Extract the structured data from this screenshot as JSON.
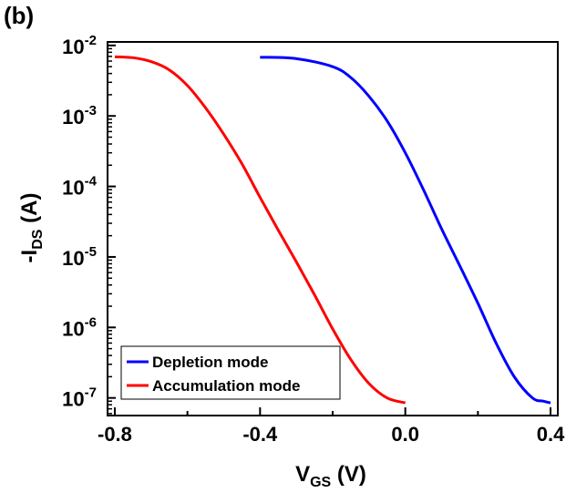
{
  "panel_label": "(b)",
  "chart_data": {
    "type": "line",
    "title": "",
    "xlabel": {
      "main": "V",
      "sub": "GS",
      "unit": " (V)"
    },
    "ylabel": {
      "prefix": "-I",
      "sub": "DS",
      "unit": " (A)"
    },
    "xlim": [
      -0.82,
      0.42
    ],
    "ylim_log10": [
      -7.25,
      -1.95
    ],
    "yscale": "log",
    "grid": false,
    "legend_position": "bottom-left",
    "xticks": [
      {
        "value": -0.8,
        "label": "-0.8"
      },
      {
        "value": -0.4,
        "label": "-0.4"
      },
      {
        "value": 0.0,
        "label": "0.0"
      },
      {
        "value": 0.4,
        "label": "0.4"
      }
    ],
    "yticks": [
      {
        "exp": -2,
        "base": "10",
        "sup": "-2"
      },
      {
        "exp": -3,
        "base": "10",
        "sup": "-3"
      },
      {
        "exp": -4,
        "base": "10",
        "sup": "-4"
      },
      {
        "exp": -5,
        "base": "10",
        "sup": "-5"
      },
      {
        "exp": -6,
        "base": "10",
        "sup": "-6"
      },
      {
        "exp": -7,
        "base": "10",
        "sup": "-7"
      }
    ],
    "series": [
      {
        "name": "Depletion mode",
        "color": "#0000ff",
        "x": [
          -0.4,
          -0.3,
          -0.2,
          -0.15,
          -0.1,
          -0.05,
          0.0,
          0.05,
          0.1,
          0.15,
          0.2,
          0.25,
          0.3,
          0.35,
          0.38,
          0.4
        ],
        "y": [
          0.0068,
          0.0065,
          0.005,
          0.0035,
          0.0019,
          0.00085,
          0.0003,
          9e-05,
          2.5e-05,
          7.5e-06,
          2.2e-06,
          6e-07,
          2e-07,
          1e-07,
          9e-08,
          8.5e-08
        ]
      },
      {
        "name": "Accumulation mode",
        "color": "#ff0000",
        "x": [
          -0.8,
          -0.75,
          -0.7,
          -0.65,
          -0.6,
          -0.55,
          -0.5,
          -0.45,
          -0.4,
          -0.35,
          -0.3,
          -0.25,
          -0.2,
          -0.15,
          -0.1,
          -0.05,
          0.0
        ],
        "y": [
          0.0069,
          0.0067,
          0.0059,
          0.0045,
          0.0027,
          0.0013,
          0.00055,
          0.00021,
          7e-05,
          2.4e-05,
          8.5e-06,
          2.9e-06,
          9.5e-07,
          3.5e-07,
          1.6e-07,
          1e-07,
          8.5e-08
        ]
      }
    ]
  }
}
